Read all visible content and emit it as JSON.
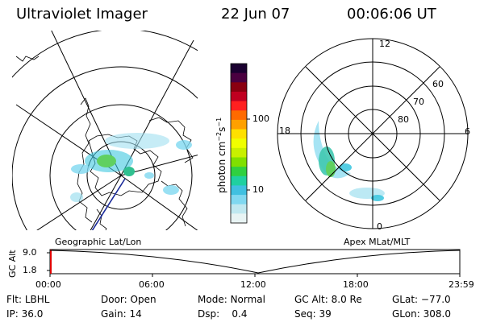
{
  "header": {
    "title": "Ultraviolet Imager",
    "date": "22 Jun 07",
    "time": "00:06:06 UT"
  },
  "colorbar": {
    "label_prefix": "photon cm",
    "label_exp1": "−2",
    "label_mid": "s",
    "label_exp2": "−1",
    "tick_100": "100",
    "tick_10": "10",
    "colors": [
      "#1a0030",
      "#4a0040",
      "#8a0010",
      "#c00020",
      "#ff2020",
      "#ff6a00",
      "#ffa000",
      "#ffe000",
      "#f0ff00",
      "#c8f000",
      "#80e000",
      "#30d040",
      "#20d0a0",
      "#40c0e0",
      "#80d8f0",
      "#c0e8f0",
      "#e8f4f4"
    ]
  },
  "left_map": {
    "caption": "Geographic Lat/Lon"
  },
  "right_map": {
    "caption": "Apex  MLat/MLT",
    "labels": {
      "top": "12",
      "right": "6",
      "bottom": "0",
      "left": "18",
      "lat60": "60",
      "lat70": "70",
      "lat80": "80"
    }
  },
  "altitude_plot": {
    "ylabel": "GC Alt",
    "ymax": "9.0",
    "ymin": "1.8",
    "xticks": [
      "00:00",
      "06:00",
      "12:00",
      "18:00",
      "23:59"
    ]
  },
  "info": {
    "row1": [
      {
        "key": "Flt:",
        "value": "LBHL"
      },
      {
        "key": "Door:",
        "value": "Open"
      },
      {
        "key": "Mode:",
        "value": "Normal"
      },
      {
        "key": "GC Alt:",
        "value": "8.0 Re"
      },
      {
        "key": "GLat:",
        "value": "−77.0"
      }
    ],
    "row2": [
      {
        "key": "IP:",
        "value": "36.0"
      },
      {
        "key": "Gain:",
        "value": "14"
      },
      {
        "key": "Dsp:",
        "value": "0.4"
      },
      {
        "key": "Seq:",
        "value": "39"
      },
      {
        "key": "GLon:",
        "value": "308.0"
      }
    ]
  }
}
